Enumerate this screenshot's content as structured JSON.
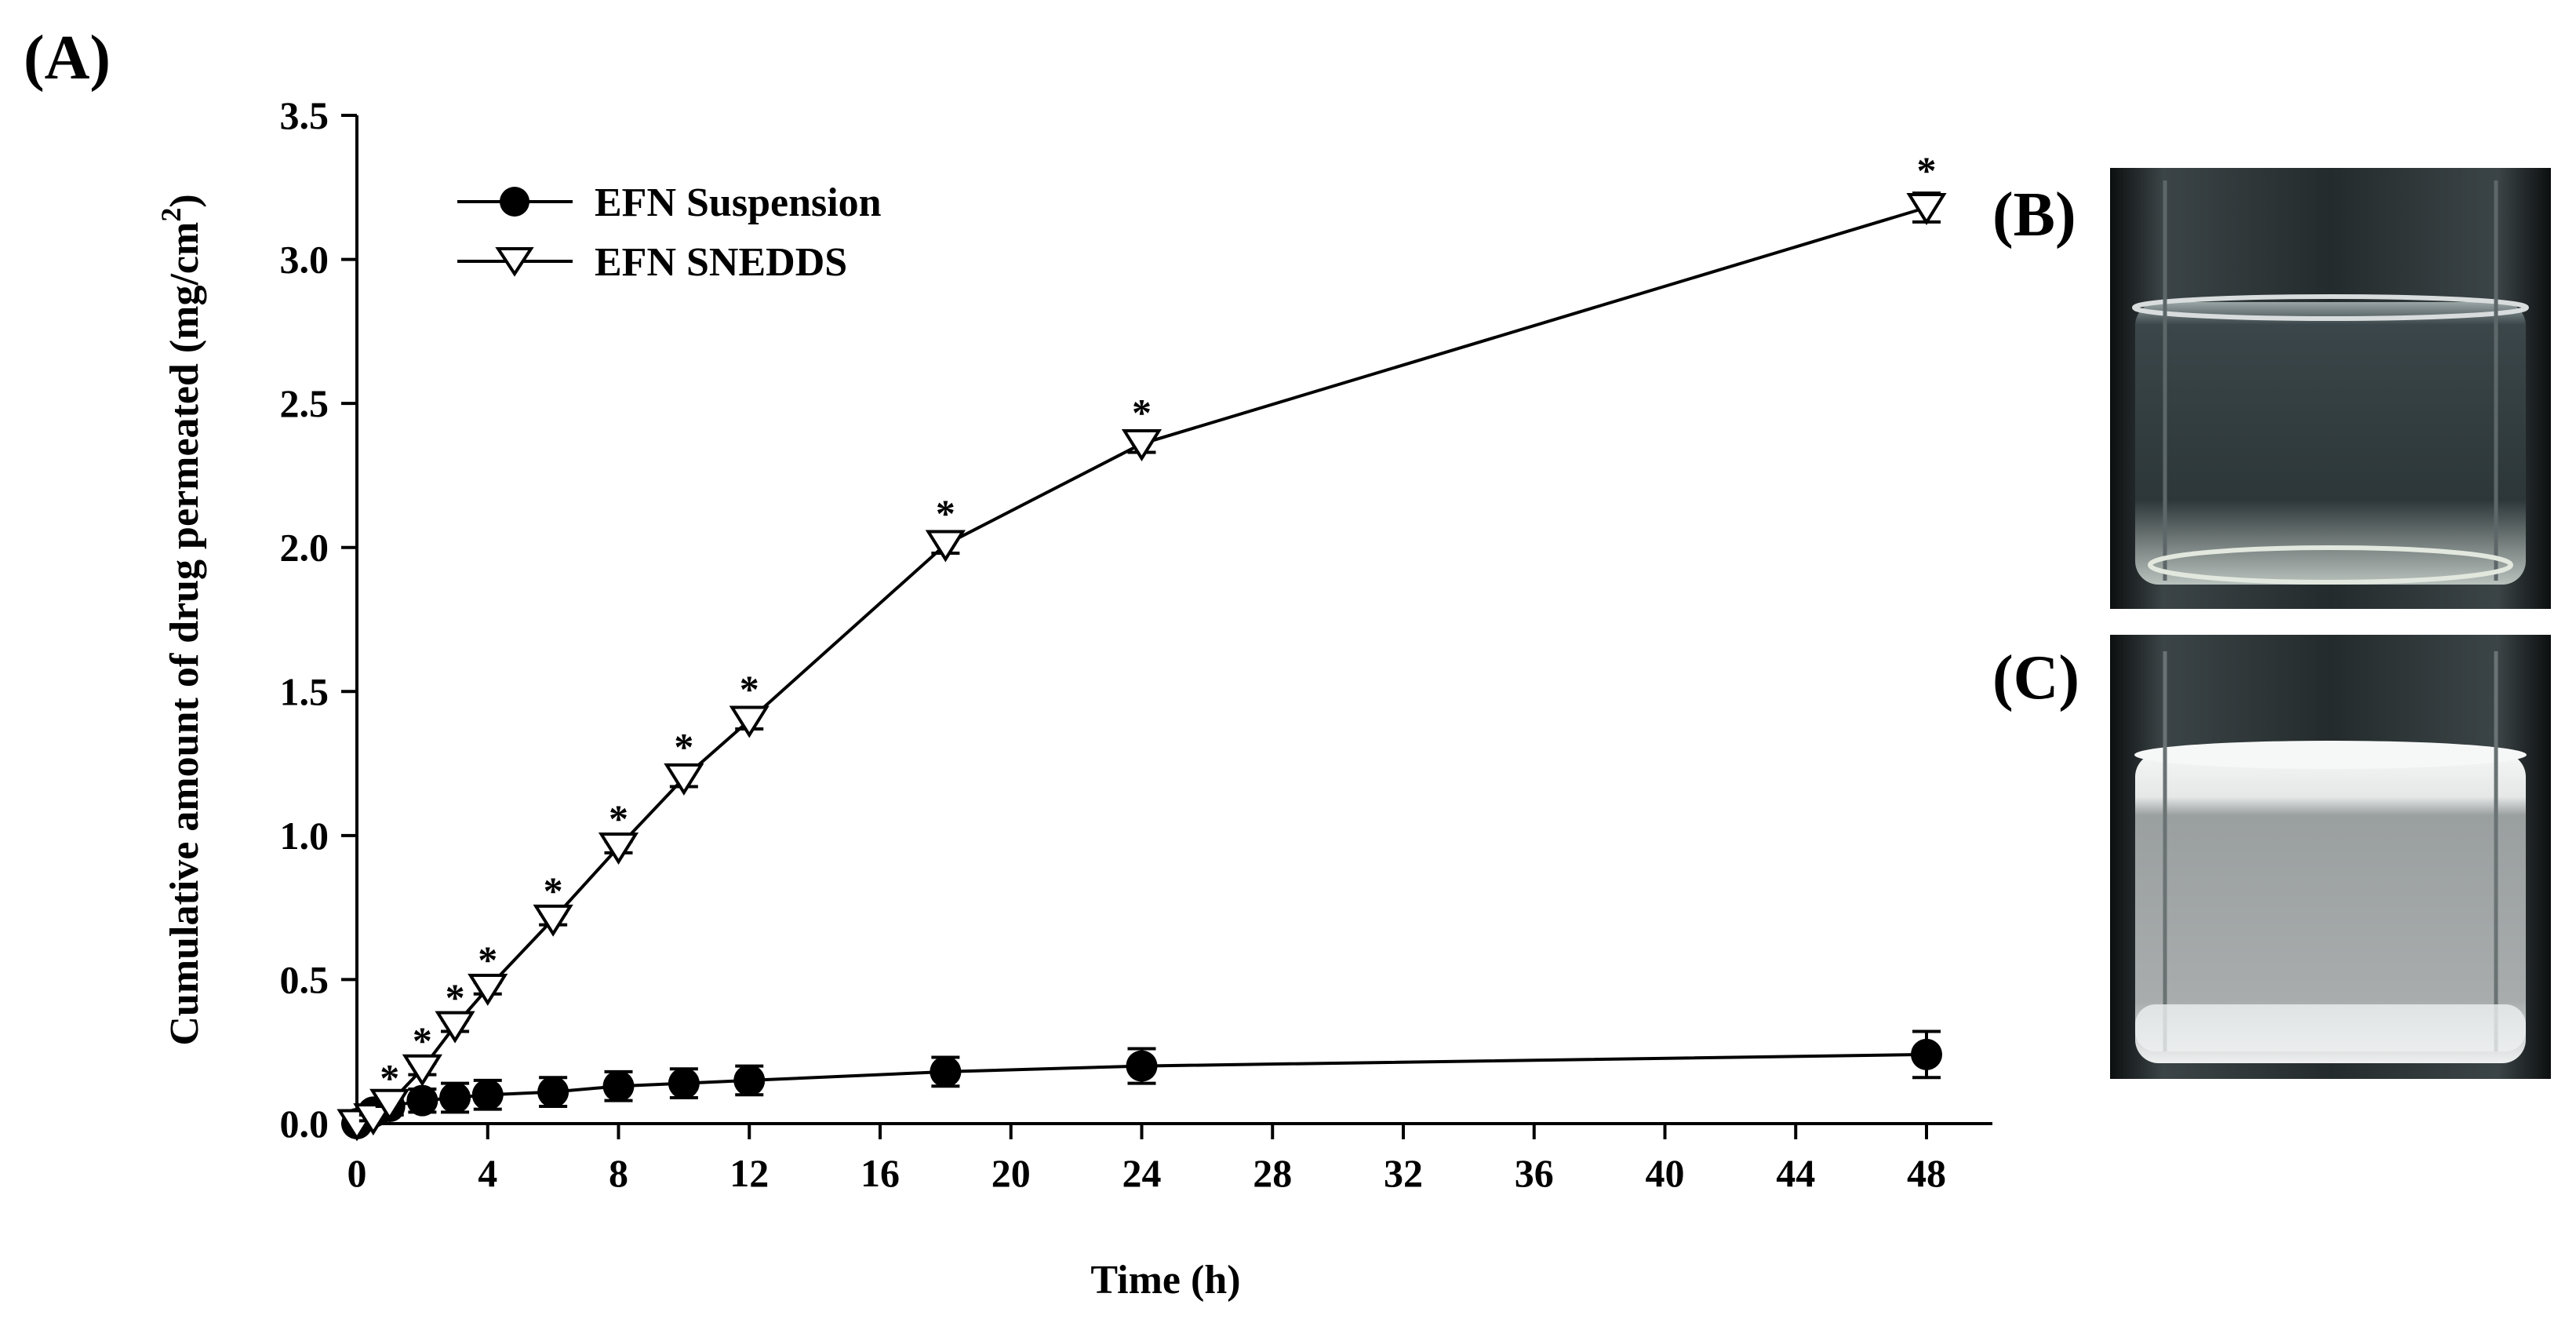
{
  "panels": {
    "a": "(A)",
    "b": "(B)",
    "c": "(C)"
  },
  "legend": {
    "series_1": "EFN Suspension",
    "series_2": "EFN SNEDDS"
  },
  "colors": {
    "ink": "#000000",
    "background": "#ffffff",
    "vial_clear_liquid": "#2e3a3c",
    "vial_suspension": "#d9dcdc"
  },
  "chart_data": {
    "type": "line",
    "title": "",
    "xlabel": "Time (h)",
    "ylabel_main": "Cumulative amount of drug permeated (mg/cm",
    "ylabel_sup": "2",
    "ylabel_end": ")",
    "xlim": [
      0,
      50
    ],
    "ylim": [
      0,
      3.5
    ],
    "x_ticks": [
      0,
      4,
      8,
      12,
      16,
      20,
      24,
      28,
      32,
      36,
      40,
      44,
      48
    ],
    "x_tick_labels": [
      "0",
      "4",
      "8",
      "12",
      "16",
      "20",
      "24",
      "28",
      "32",
      "36",
      "40",
      "44",
      "48"
    ],
    "y_ticks": [
      0,
      0.5,
      1.0,
      1.5,
      2.0,
      2.5,
      3.0,
      3.5
    ],
    "y_tick_labels": [
      "0.0",
      "0.5",
      "1.0",
      "1.5",
      "2.0",
      "2.5",
      "3.0",
      "3.5"
    ],
    "grid": false,
    "legend_position": "top-left",
    "significance_marker": "*",
    "series": [
      {
        "name": "EFN Suspension",
        "marker": "filled-circle",
        "x": [
          0,
          0.5,
          1,
          2,
          3,
          4,
          6,
          8,
          10,
          12,
          18,
          24,
          48
        ],
        "y": [
          0.0,
          0.04,
          0.06,
          0.08,
          0.09,
          0.1,
          0.11,
          0.13,
          0.14,
          0.15,
          0.18,
          0.2,
          0.24
        ],
        "error": [
          0.0,
          0.02,
          0.03,
          0.04,
          0.05,
          0.05,
          0.05,
          0.05,
          0.05,
          0.05,
          0.05,
          0.06,
          0.08
        ]
      },
      {
        "name": "EFN SNEDDS",
        "marker": "open-triangle-down",
        "x": [
          0,
          0.5,
          1,
          2,
          3,
          4,
          6,
          8,
          10,
          12,
          18,
          24,
          48
        ],
        "y": [
          0.0,
          0.02,
          0.07,
          0.19,
          0.34,
          0.47,
          0.71,
          0.96,
          1.2,
          1.4,
          2.01,
          2.36,
          3.18
        ],
        "error": [
          0.0,
          0.01,
          0.01,
          0.02,
          0.02,
          0.02,
          0.02,
          0.02,
          0.03,
          0.03,
          0.03,
          0.03,
          0.05
        ],
        "significant": [
          false,
          false,
          true,
          true,
          true,
          true,
          true,
          true,
          true,
          true,
          true,
          true,
          true
        ]
      }
    ]
  }
}
